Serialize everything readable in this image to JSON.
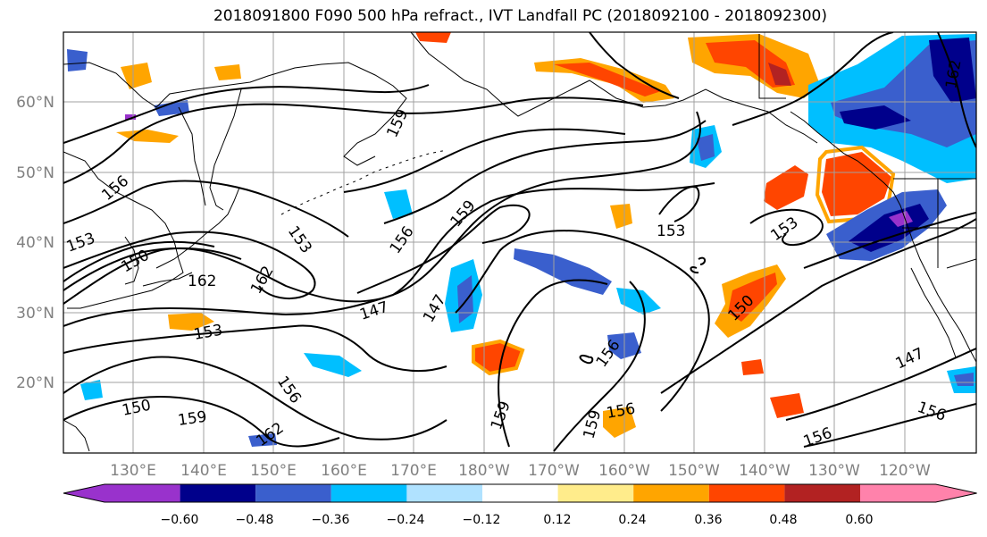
{
  "title": "2018091800 F090 500 hPa refract., IVT Landfall PC (2018092100 - 2018092300)",
  "lat_labels": [
    "60°N",
    "50°N",
    "40°N",
    "30°N",
    "20°N"
  ],
  "lon_labels": [
    "130°E",
    "140°E",
    "150°E",
    "160°E",
    "170°E",
    "180°W",
    "170°W",
    "160°W",
    "150°W",
    "140°W",
    "130°W",
    "120°W"
  ],
  "contour_labels": [
    "156",
    "159",
    "153",
    "150",
    "162",
    "156",
    "159",
    "153",
    "147",
    "153",
    "150",
    "147",
    "159",
    "156",
    "162",
    "159",
    "162",
    "153",
    "153",
    "150",
    "147",
    "156",
    "156",
    "156",
    "159",
    "156",
    "162"
  ],
  "colorbar": {
    "colors": [
      "#9932cc",
      "#00008b",
      "#3a5fcd",
      "#00bfff",
      "#b0e2ff",
      "#ffffff",
      "#ffec8b",
      "#ffa500",
      "#ff4500",
      "#b22222",
      "#ff82ab"
    ],
    "tick_labels": [
      "−0.60",
      "−0.48",
      "−0.36",
      "−0.24",
      "−0.12",
      "0.12",
      "0.24",
      "0.36",
      "0.48",
      "0.60"
    ]
  }
}
